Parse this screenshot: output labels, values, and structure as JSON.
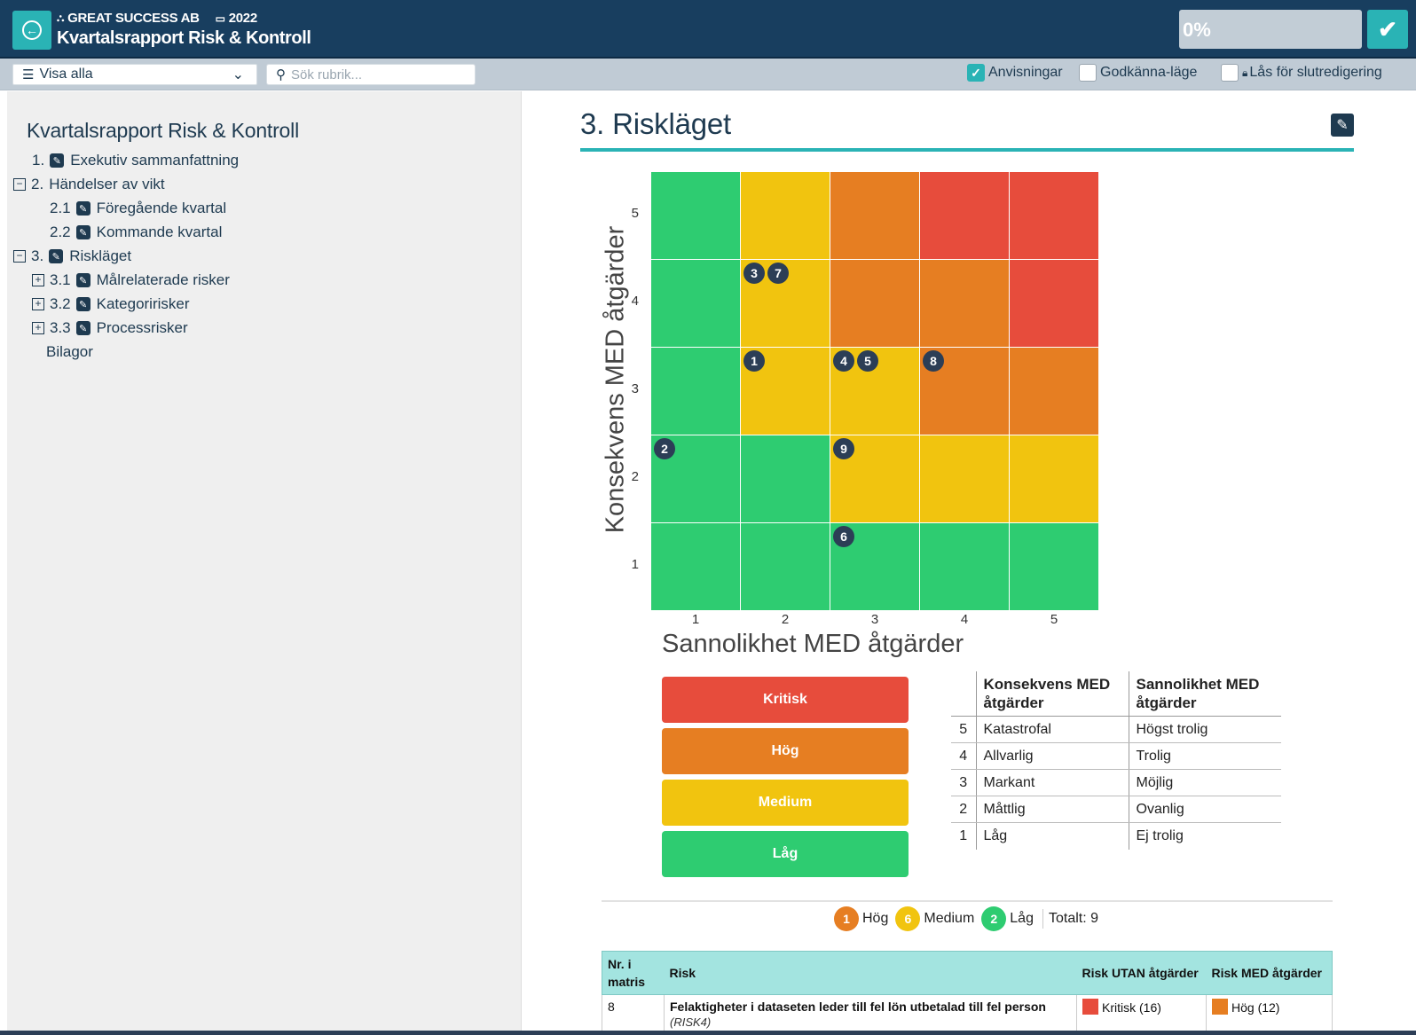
{
  "header": {
    "company": "GREAT SUCCESS AB",
    "year": "2022",
    "title": "Kvartalsrapport Risk & Kontroll",
    "progress": "0%"
  },
  "toolbar": {
    "view_select": "Visa alla",
    "search_placeholder": "Sök rubrik...",
    "options": [
      {
        "label": "Anvisningar",
        "checked": true
      },
      {
        "label": "Godkänna-läge",
        "checked": false
      },
      {
        "label": "Lås för slutredigering",
        "checked": false
      }
    ]
  },
  "sidebar": {
    "title": "Kvartalsrapport Risk & Kontroll",
    "items": [
      {
        "num": "1.",
        "label": "Exekutiv sammanfattning"
      },
      {
        "num": "2.",
        "label": "Händelser av vikt"
      },
      {
        "num": "2.1",
        "label": "Föregående kvartal"
      },
      {
        "num": "2.2",
        "label": "Kommande kvartal"
      },
      {
        "num": "3.",
        "label": "Riskläget"
      },
      {
        "num": "3.1",
        "label": "Målrelaterade risker"
      },
      {
        "num": "3.2",
        "label": "Kategoririsker"
      },
      {
        "num": "3.3",
        "label": "Processrisker"
      },
      {
        "num": "",
        "label": "Bilagor"
      }
    ]
  },
  "section": {
    "title": "3. Riskläget"
  },
  "matrix": {
    "x_label": "Sannolikhet MED åtgärder",
    "y_label": "Konsekvens MED åtgärder",
    "ticks": [
      "1",
      "2",
      "3",
      "4",
      "5"
    ],
    "colors": {
      "low": "#2ecc71",
      "medium": "#f1c40f",
      "high": "#e67e22",
      "critical": "#e74c3c"
    },
    "grid": [
      [
        "low",
        "medium",
        "high",
        "critical",
        "critical"
      ],
      [
        "low",
        "medium",
        "high",
        "high",
        "critical"
      ],
      [
        "low",
        "medium",
        "medium",
        "high",
        "high"
      ],
      [
        "low",
        "low",
        "medium",
        "medium",
        "medium"
      ],
      [
        "low",
        "low",
        "low",
        "low",
        "low"
      ]
    ],
    "risks": [
      {
        "id": "1",
        "x": 2,
        "y": 3
      },
      {
        "id": "2",
        "x": 1,
        "y": 2
      },
      {
        "id": "3",
        "x": 2,
        "y": 4
      },
      {
        "id": "4",
        "x": 3,
        "y": 3
      },
      {
        "id": "5",
        "x": 3,
        "y": 3
      },
      {
        "id": "6",
        "x": 3,
        "y": 1
      },
      {
        "id": "7",
        "x": 2,
        "y": 4
      },
      {
        "id": "8",
        "x": 4,
        "y": 3
      },
      {
        "id": "9",
        "x": 3,
        "y": 2
      }
    ]
  },
  "levels": [
    {
      "label": "Kritisk",
      "color": "#e74c3c"
    },
    {
      "label": "Hög",
      "color": "#e67e22"
    },
    {
      "label": "Medium",
      "color": "#f1c40f"
    },
    {
      "label": "Låg",
      "color": "#2ecc71"
    }
  ],
  "legend_table": {
    "headers": [
      "",
      "Konsekvens MED åtgärder",
      "Sannolikhet MED åtgärder"
    ],
    "rows": [
      [
        "5",
        "Katastrofal",
        "Högst trolig"
      ],
      [
        "4",
        "Allvarlig",
        "Trolig"
      ],
      [
        "3",
        "Markant",
        "Möjlig"
      ],
      [
        "2",
        "Måttlig",
        "Ovanlig"
      ],
      [
        "1",
        "Låg",
        "Ej trolig"
      ]
    ]
  },
  "summary": {
    "items": [
      {
        "count": "1",
        "label": "Hög",
        "color": "#e67e22"
      },
      {
        "count": "6",
        "label": "Medium",
        "color": "#f1c40f"
      },
      {
        "count": "2",
        "label": "Låg",
        "color": "#2ecc71"
      }
    ],
    "total": "Totalt: 9"
  },
  "risk_table": {
    "headers": [
      "Nr. i matris",
      "Risk",
      "Risk UTAN åtgärder",
      "Risk MED åtgärder"
    ],
    "rows": [
      {
        "nr": "8",
        "risk": "Felaktigheter i dataseten leder till fel lön utbetalad till fel person",
        "risk_id": "(RISK4)",
        "without": {
          "label": "Kritisk (16)",
          "color": "#e74c3c"
        },
        "with": {
          "label": "Hög (12)",
          "color": "#e67e22"
        }
      }
    ]
  }
}
